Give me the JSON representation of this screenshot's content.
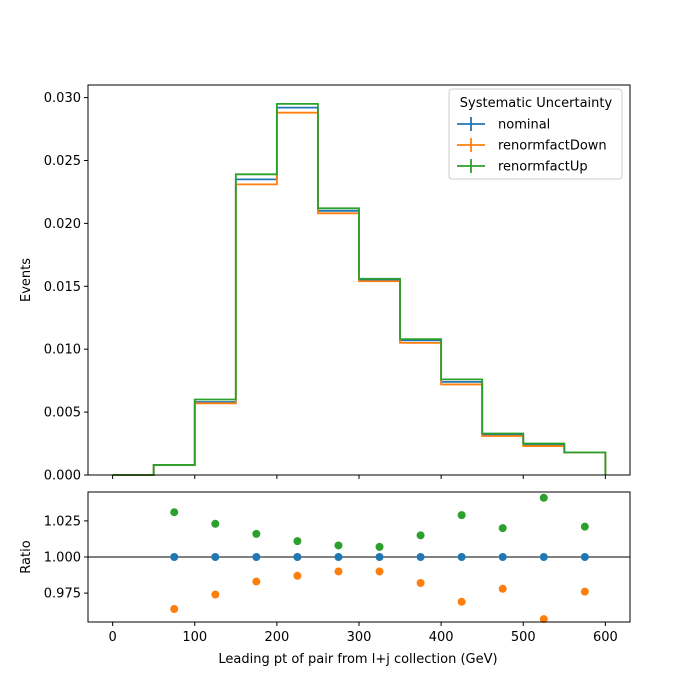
{
  "chart_data": {
    "type": "histogram-with-ratio",
    "main": {
      "ylabel": "Events",
      "xlim": [
        -30,
        630
      ],
      "ylim": [
        0,
        0.031
      ],
      "yticks": [
        "0.000",
        "0.005",
        "0.010",
        "0.015",
        "0.020",
        "0.025",
        "0.030"
      ],
      "ytick_values": [
        0,
        0.005,
        0.01,
        0.015,
        0.02,
        0.025,
        0.03
      ],
      "bin_edges": [
        0,
        50,
        100,
        150,
        200,
        250,
        300,
        350,
        400,
        450,
        500,
        550,
        600
      ],
      "series": [
        {
          "name": "nominal",
          "color": "#1f77b4",
          "values": [
            0.0,
            0.0008,
            0.0058,
            0.0235,
            0.0292,
            0.021,
            0.0155,
            0.0107,
            0.0074,
            0.0032,
            0.0024,
            0.0018
          ]
        },
        {
          "name": "renormfactDown",
          "color": "#ff7f0e",
          "values": [
            0.0,
            0.0008,
            0.0057,
            0.0231,
            0.0288,
            0.0208,
            0.0154,
            0.0105,
            0.0072,
            0.0031,
            0.0023,
            0.0018
          ]
        },
        {
          "name": "renormfactUp",
          "color": "#2ca02c",
          "values": [
            0.0,
            0.0008,
            0.006,
            0.0239,
            0.0295,
            0.0212,
            0.0156,
            0.0108,
            0.0076,
            0.0033,
            0.0025,
            0.0018
          ]
        }
      ],
      "legend": {
        "title": "Systematic Uncertainty",
        "placement": "top-right"
      }
    },
    "ratio": {
      "ylabel": "Ratio",
      "xlabel": "Leading pt of pair from l+j collection (GeV)",
      "xlim": [
        -30,
        630
      ],
      "ylim": [
        0.955,
        1.045
      ],
      "yticks": [
        "0.975",
        "1.000",
        "1.025"
      ],
      "ytick_values": [
        0.975,
        1.0,
        1.025
      ],
      "xticks": [
        "0",
        "100",
        "200",
        "300",
        "400",
        "500",
        "600"
      ],
      "xtick_values": [
        0,
        100,
        200,
        300,
        400,
        500,
        600
      ],
      "reference_line": 1.0,
      "x": [
        75,
        125,
        175,
        225,
        275,
        325,
        375,
        425,
        475,
        525,
        575
      ],
      "series": [
        {
          "name": "nominal",
          "color": "#1f77b4",
          "values": [
            1.0,
            1.0,
            1.0,
            1.0,
            1.0,
            1.0,
            1.0,
            1.0,
            1.0,
            1.0,
            1.0
          ]
        },
        {
          "name": "renormfactDown",
          "color": "#ff7f0e",
          "values": [
            0.964,
            0.974,
            0.983,
            0.987,
            0.99,
            0.99,
            0.982,
            0.969,
            0.978,
            0.957,
            0.976
          ]
        },
        {
          "name": "renormfactUp",
          "color": "#2ca02c",
          "values": [
            1.031,
            1.023,
            1.016,
            1.011,
            1.008,
            1.007,
            1.015,
            1.029,
            1.02,
            1.041,
            1.021
          ]
        }
      ]
    }
  }
}
